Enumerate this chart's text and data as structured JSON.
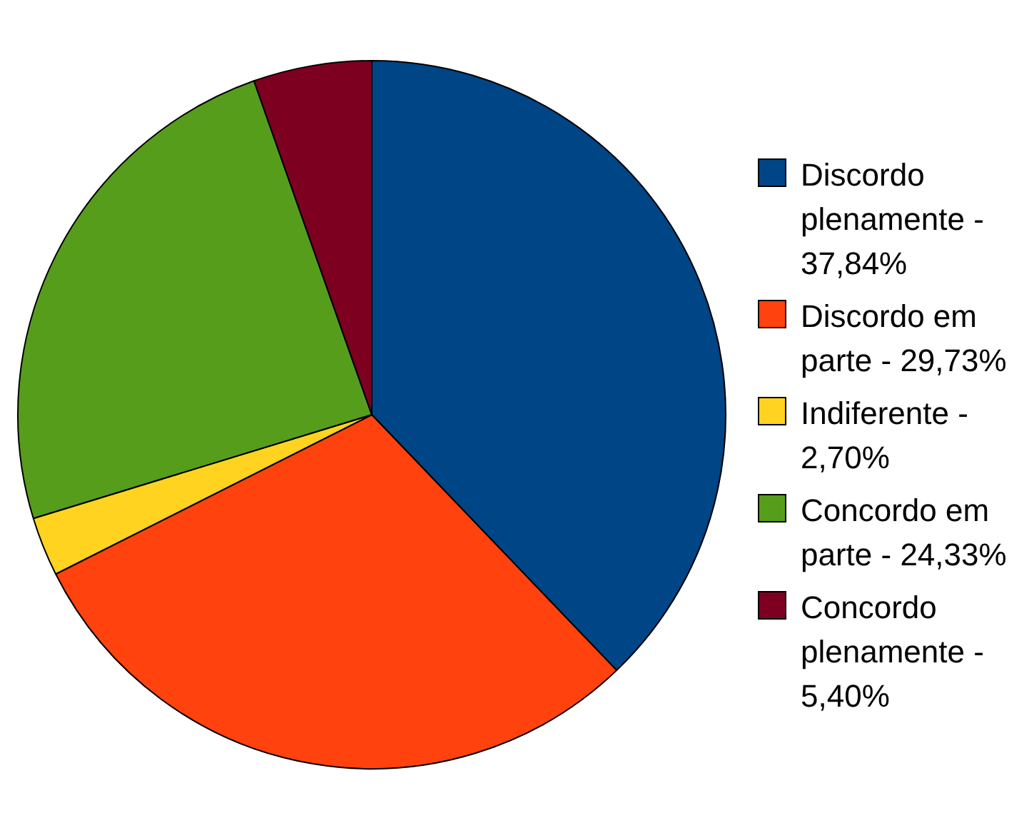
{
  "chart_data": {
    "type": "pie",
    "categories": [
      "Discordo plenamente - 37,84%",
      "Discordo em parte - 29,73%",
      "Indiferente - 2,70%",
      "Concordo em parte - 24,33%",
      "Concordo plenamente - 5,40%"
    ],
    "values": [
      37.84,
      29.73,
      2.7,
      24.33,
      5.4
    ],
    "colors": [
      "#004586",
      "#ff420e",
      "#ffd320",
      "#579d1c",
      "#7e0021"
    ],
    "legend": "right"
  }
}
